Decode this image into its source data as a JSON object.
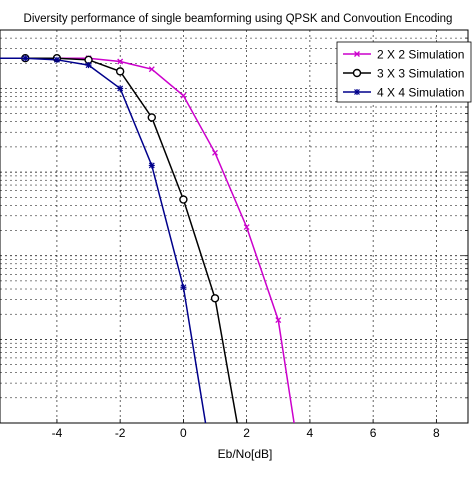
{
  "chart_data": {
    "type": "line",
    "title": "Diversity performance of single beamforming using QPSK and Convoution Encoding",
    "xlabel": "Eb/No[dB]",
    "ylabel": "",
    "x_ticks": [
      "-4",
      "-2",
      "0",
      "2",
      "4",
      "6",
      "8"
    ],
    "xlim": [
      -5.8,
      9
    ],
    "y_scale": "log",
    "ylim": [
      1e-05,
      0.5
    ],
    "grid": true,
    "legend_position": "top-right",
    "series": [
      {
        "name": "2 X 2 Simulation",
        "color": "#cc00cc",
        "marker": "x-icon",
        "x": [
          -6,
          -5,
          -4,
          -3,
          -2,
          -1,
          0,
          1,
          2,
          3,
          3.5
        ],
        "y": [
          0.23,
          0.23,
          0.23,
          0.23,
          0.21,
          0.17,
          0.082,
          0.017,
          0.0022,
          0.00017,
          1e-05
        ]
      },
      {
        "name": "3 X 3 Simulation",
        "color": "#000000",
        "marker": "circle-icon",
        "x": [
          -6,
          -5,
          -4,
          -3,
          -2,
          -1,
          0,
          1,
          1.7
        ],
        "y": [
          0.23,
          0.23,
          0.23,
          0.22,
          0.16,
          0.045,
          0.0047,
          0.00031,
          1e-05
        ]
      },
      {
        "name": "4 X 4 Simulation",
        "color": "#00008b",
        "marker": "star-icon",
        "x": [
          -6,
          -5,
          -4,
          -3,
          -2,
          -1,
          0,
          0.7
        ],
        "y": [
          0.23,
          0.23,
          0.22,
          0.19,
          0.1,
          0.012,
          0.00042,
          1e-05
        ]
      }
    ]
  }
}
